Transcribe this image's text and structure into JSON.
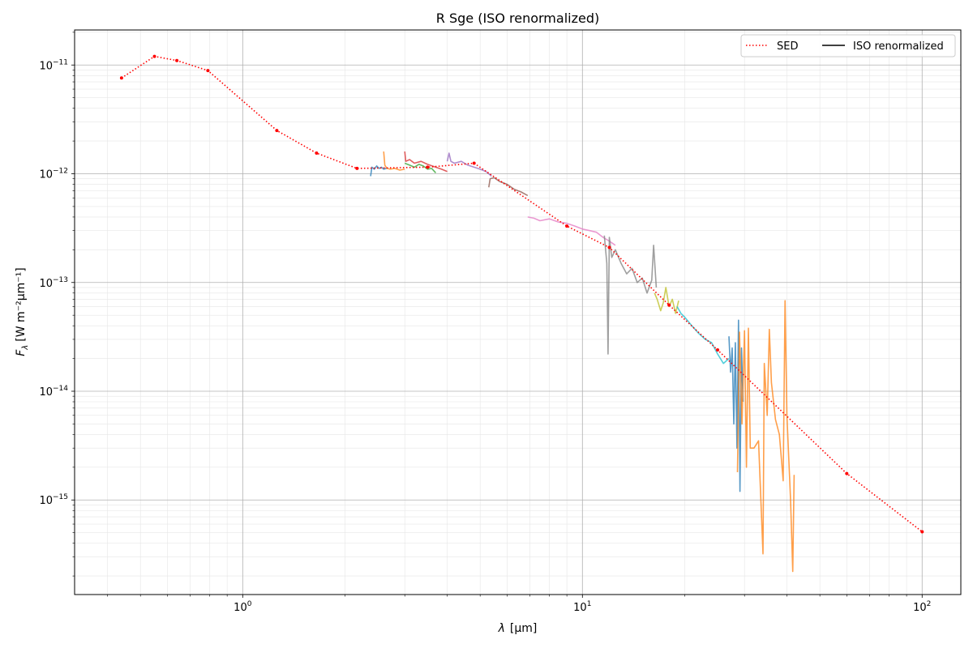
{
  "chart_data": {
    "type": "line",
    "title": "R Sge (ISO renormalized)",
    "xlabel_var": "λ",
    "xlabel_unit": "[μm]",
    "ylabel_var": "F",
    "ylabel_sub": "λ",
    "ylabel_unit": "[W m⁻²μm⁻¹]",
    "x_scale": "log",
    "y_scale": "log",
    "xlim": [
      0.32,
      130
    ],
    "ylim": [
      1.35e-16,
      2.1e-11
    ],
    "x_ticks": [
      {
        "value": 1,
        "base": "10",
        "exp": "0"
      },
      {
        "value": 10,
        "base": "10",
        "exp": "1"
      },
      {
        "value": 100,
        "base": "10",
        "exp": "2"
      }
    ],
    "y_ticks": [
      {
        "value": 1e-15,
        "base": "10",
        "exp": "−15"
      },
      {
        "value": 1e-14,
        "base": "10",
        "exp": "−14"
      },
      {
        "value": 1e-13,
        "base": "10",
        "exp": "−13"
      },
      {
        "value": 1e-12,
        "base": "10",
        "exp": "−12"
      },
      {
        "value": 1e-11,
        "base": "10",
        "exp": "−11"
      }
    ],
    "grid": "major and minor",
    "legend": {
      "placement": "top-right",
      "entries": [
        {
          "label": "SED",
          "style": "dotted",
          "color": "#ff0000"
        },
        {
          "label": "ISO renormalized",
          "style": "solid",
          "color": "#000000"
        }
      ]
    },
    "sed": {
      "name": "SED",
      "color": "#ff0000",
      "x": [
        0.44,
        0.55,
        0.64,
        0.79,
        1.26,
        1.65,
        2.17,
        3.5,
        4.8,
        9.0,
        12,
        18,
        25,
        60,
        100
      ],
      "y": [
        7.6e-12,
        1.2e-11,
        1.1e-11,
        8.9e-12,
        2.5e-12,
        1.55e-12,
        1.12e-12,
        1.15e-12,
        1.25e-12,
        3.3e-13,
        2.1e-13,
        6.2e-14,
        2.4e-14,
        1.75e-15,
        5.1e-16
      ]
    },
    "iso_segments": [
      {
        "color": "#1f77b4",
        "x": [
          2.38,
          2.4,
          2.44,
          2.48,
          2.52,
          2.56,
          2.6,
          2.65
        ],
        "y": [
          9.5e-13,
          1.15e-12,
          1.1e-12,
          1.18e-12,
          1.12e-12,
          1.15e-12,
          1.1e-12,
          1.12e-12
        ]
      },
      {
        "color": "#ff7f0e",
        "x": [
          2.6,
          2.62,
          2.66,
          2.72,
          2.8,
          2.9,
          3.0
        ],
        "y": [
          1.6e-12,
          1.2e-12,
          1.12e-12,
          1.1e-12,
          1.12e-12,
          1.08e-12,
          1.1e-12
        ]
      },
      {
        "color": "#2ca02c",
        "x": [
          3.0,
          3.1,
          3.2,
          3.3,
          3.4,
          3.5,
          3.6,
          3.7
        ],
        "y": [
          1.25e-12,
          1.2e-12,
          1.15e-12,
          1.22e-12,
          1.18e-12,
          1.1e-12,
          1.12e-12,
          1.02e-12
        ]
      },
      {
        "color": "#d62728",
        "x": [
          3.0,
          3.02,
          3.1,
          3.2,
          3.35,
          3.5,
          3.7,
          3.85,
          4.0
        ],
        "y": [
          1.6e-12,
          1.3e-12,
          1.35e-12,
          1.25e-12,
          1.3e-12,
          1.22e-12,
          1.15e-12,
          1.1e-12,
          1.05e-12
        ]
      },
      {
        "color": "#9467bd",
        "x": [
          4.0,
          4.05,
          4.1,
          4.2,
          4.4,
          4.6,
          4.8,
          5.0,
          5.2,
          5.4
        ],
        "y": [
          1.3e-12,
          1.55e-12,
          1.3e-12,
          1.25e-12,
          1.3e-12,
          1.2e-12,
          1.15e-12,
          1.1e-12,
          1.05e-12,
          9.5e-13
        ]
      },
      {
        "color": "#8c564b",
        "x": [
          5.3,
          5.35,
          5.5,
          5.7,
          6.0,
          6.3,
          6.6,
          6.9
        ],
        "y": [
          7.5e-13,
          9e-13,
          9.2e-13,
          8.5e-13,
          8e-13,
          7.2e-13,
          6.8e-13,
          6.3e-13
        ]
      },
      {
        "color": "#e377c2",
        "x": [
          6.9,
          7.2,
          7.5,
          8.0,
          8.5,
          9.0,
          9.5,
          10,
          10.5,
          11,
          11.5,
          12,
          12.5
        ],
        "y": [
          4e-13,
          3.9e-13,
          3.7e-13,
          3.85e-13,
          3.6e-13,
          3.5e-13,
          3.3e-13,
          3.1e-13,
          3e-13,
          2.9e-13,
          2.6e-13,
          2.4e-13,
          2.2e-13
        ]
      },
      {
        "color": "#7f7f7f",
        "x": [
          11.6,
          11.8,
          11.9,
          12.0,
          12.2,
          12.5,
          13.0,
          13.5,
          14.0,
          14.5,
          15.0,
          15.5,
          16.0,
          16.2,
          16.5
        ],
        "y": [
          2.7e-13,
          1.5e-13,
          2.2e-14,
          2.6e-13,
          1.7e-13,
          2e-13,
          1.5e-13,
          1.2e-13,
          1.35e-13,
          1e-13,
          1.1e-13,
          8e-14,
          1.05e-13,
          2.2e-13,
          9e-14
        ]
      },
      {
        "color": "#bcbd22",
        "x": [
          16.3,
          16.6,
          17.0,
          17.3,
          17.6,
          18.0,
          18.4,
          18.8,
          19.2
        ],
        "y": [
          8e-14,
          7e-14,
          5.5e-14,
          6.5e-14,
          9e-14,
          6e-14,
          7e-14,
          5.2e-14,
          6.8e-14
        ]
      },
      {
        "color": "#17becf",
        "x": [
          19.0,
          19.5,
          20.0,
          21.0,
          22.0,
          23.0,
          24.0,
          25.0,
          26.0,
          27.0
        ],
        "y": [
          6e-14,
          5.2e-14,
          4.8e-14,
          4e-14,
          3.4e-14,
          3e-14,
          2.8e-14,
          2.2e-14,
          1.8e-14,
          2e-14
        ]
      },
      {
        "color": "#1f77b4",
        "x": [
          27.0,
          27.3,
          27.6,
          27.9,
          28.2,
          28.5,
          28.8,
          29.1,
          29.4,
          29.7
        ],
        "y": [
          3.2e-14,
          1.5e-14,
          2.5e-14,
          5e-15,
          2.8e-14,
          3e-15,
          4.5e-14,
          1.2e-15,
          2.5e-14,
          8e-15
        ]
      },
      {
        "color": "#ff7f0e",
        "x": [
          28.6,
          29.0,
          29.5,
          30.0,
          30.4,
          30.8,
          31.2,
          32.0,
          33.0,
          34.0,
          34.3,
          35.0,
          35.5,
          36.0,
          37.0,
          38.0,
          39.0,
          39.5,
          40.0,
          41.0,
          41.6,
          42.0
        ],
        "y": [
          1.8e-15,
          3.5e-14,
          5e-15,
          3.6e-14,
          2e-15,
          3.8e-14,
          3e-15,
          3e-15,
          3.5e-15,
          3.2e-16,
          1.8e-14,
          6e-15,
          3.7e-14,
          1.2e-14,
          5.5e-15,
          4e-15,
          1.5e-15,
          6.8e-14,
          6e-15,
          1e-15,
          2.2e-16,
          1.7e-15
        ]
      }
    ]
  }
}
